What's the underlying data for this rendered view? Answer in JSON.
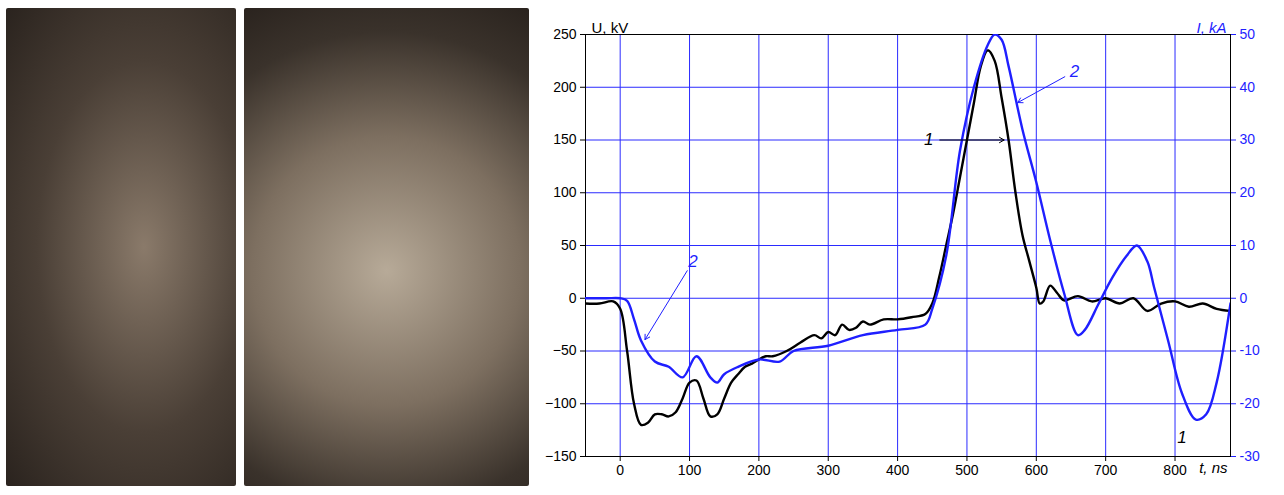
{
  "chart_data": {
    "type": "line",
    "x_label": "t, ns",
    "y_label": "U, kV",
    "y2_label": "I, kA",
    "xlim": [
      -50,
      880
    ],
    "xticks": [
      0,
      100,
      200,
      300,
      400,
      500,
      600,
      700,
      800
    ],
    "ylim": [
      -150,
      250
    ],
    "yticks": [
      -150,
      -100,
      -50,
      0,
      50,
      100,
      150,
      200,
      250
    ],
    "y2lim": [
      -30,
      50
    ],
    "y2ticks": [
      -30,
      -20,
      -10,
      0,
      10,
      20,
      30,
      40,
      50
    ],
    "grid": true,
    "series": [
      {
        "name": "1",
        "color": "#000000",
        "axis": "y",
        "x": [
          -50,
          -30,
          -10,
          0,
          10,
          20,
          30,
          40,
          50,
          60,
          70,
          80,
          90,
          100,
          110,
          120,
          130,
          140,
          150,
          160,
          170,
          180,
          190,
          200,
          210,
          220,
          240,
          260,
          280,
          290,
          300,
          310,
          320,
          330,
          340,
          350,
          360,
          380,
          400,
          420,
          440,
          450,
          460,
          470,
          480,
          490,
          500,
          510,
          520,
          530,
          540,
          550,
          560,
          570,
          580,
          590,
          600,
          605,
          610,
          620,
          630,
          640,
          660,
          680,
          700,
          720,
          740,
          760,
          780,
          800,
          820,
          840,
          860,
          880
        ],
        "values": [
          -5,
          -5,
          -3,
          -10,
          -50,
          -100,
          -120,
          -118,
          -110,
          -110,
          -112,
          -108,
          -95,
          -80,
          -78,
          -95,
          -112,
          -110,
          -95,
          -80,
          -72,
          -65,
          -62,
          -58,
          -55,
          -55,
          -50,
          -42,
          -35,
          -38,
          -32,
          -35,
          -25,
          -30,
          -28,
          -22,
          -25,
          -20,
          -20,
          -18,
          -15,
          -5,
          20,
          50,
          80,
          115,
          150,
          185,
          220,
          235,
          225,
          190,
          150,
          100,
          60,
          35,
          10,
          -5,
          -3,
          12,
          5,
          -2,
          2,
          -3,
          0,
          -5,
          0,
          -12,
          -5,
          -3,
          -8,
          -5,
          -10,
          -12
        ]
      },
      {
        "name": "2",
        "color": "#1f1fff",
        "axis": "y2",
        "x": [
          -50,
          -20,
          0,
          10,
          20,
          30,
          50,
          70,
          90,
          110,
          130,
          140,
          150,
          170,
          200,
          230,
          250,
          300,
          350,
          400,
          440,
          450,
          470,
          490,
          510,
          530,
          540,
          550,
          560,
          580,
          600,
          620,
          640,
          660,
          670,
          690,
          710,
          730,
          745,
          760,
          770,
          790,
          810,
          830,
          845,
          860,
          880
        ],
        "values": [
          0,
          0,
          0,
          -0.5,
          -4,
          -8,
          -12,
          -13,
          -15,
          -11,
          -15,
          -16,
          -14.4,
          -13,
          -11.6,
          -12,
          -10,
          -9,
          -7,
          -6,
          -5,
          -2,
          8,
          28,
          40,
          48,
          50,
          49,
          44,
          32,
          22,
          11,
          1,
          -7,
          -6,
          -1,
          4,
          8,
          10,
          7,
          2,
          -8,
          -18,
          -23,
          -22,
          -16,
          -1
        ]
      }
    ],
    "annotations": [
      {
        "text": "1",
        "series": "1",
        "x": 445,
        "y": 150,
        "arrow_to": [
          555,
          150
        ]
      },
      {
        "text": "1",
        "series": "1",
        "x": 810,
        "y": -132
      },
      {
        "text": "2",
        "series": "2",
        "x": 655,
        "y": 215,
        "arrow_to": [
          572,
          185
        ]
      },
      {
        "text": "2",
        "series": "2",
        "x": 105,
        "y": 35,
        "arrow_to": [
          35,
          -40
        ]
      }
    ]
  }
}
